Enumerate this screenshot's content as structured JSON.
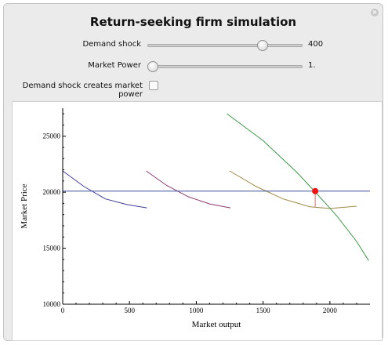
{
  "title": "Return-seeking firm simulation",
  "controls": {
    "demand_shock": {
      "label": "Demand shock",
      "value": "400",
      "fraction": 0.76
    },
    "market_power": {
      "label": "Market Power",
      "value": "1.",
      "fraction": 0.0
    },
    "checkbox": {
      "label": "Demand shock creates market power",
      "checked": false
    }
  },
  "icons": {
    "close": "close-icon"
  },
  "chart_data": {
    "type": "line",
    "xlabel": "Market output",
    "ylabel": "Market Price",
    "xlim": [
      0,
      2300
    ],
    "ylim": [
      10000,
      27500
    ],
    "xticks": [
      0,
      500,
      1000,
      1500,
      2000
    ],
    "yticks": [
      10000,
      15000,
      20000,
      25000
    ],
    "series": [
      {
        "color": "#3e3e9a",
        "x": [
          0,
          160,
          320,
          480,
          630
        ],
        "y": [
          21900,
          20500,
          19400,
          18900,
          18600
        ]
      },
      {
        "color": "#8e3a73",
        "x": [
          625,
          780,
          940,
          1100,
          1255
        ],
        "y": [
          21900,
          20600,
          19600,
          18950,
          18600
        ]
      },
      {
        "color": "#a08a45",
        "x": [
          1250,
          1450,
          1650,
          1850,
          2000,
          2200
        ],
        "y": [
          21900,
          20500,
          19400,
          18700,
          18550,
          18750
        ]
      },
      {
        "color": "#3a9a45",
        "x": [
          1230,
          1500,
          1750,
          1900,
          2050,
          2200,
          2290
        ],
        "y": [
          27000,
          24600,
          21800,
          19900,
          17900,
          15600,
          13900
        ]
      },
      {
        "color": "#3d4d9a",
        "x": [
          0,
          2300
        ],
        "y": [
          20100,
          20100
        ]
      }
    ],
    "marker": {
      "x": 1890,
      "y": 20100,
      "color": "#ee1111"
    },
    "drop_line": {
      "x": 1890,
      "y_from": 20100,
      "y_to": 18650,
      "color": "#ee8080"
    }
  }
}
